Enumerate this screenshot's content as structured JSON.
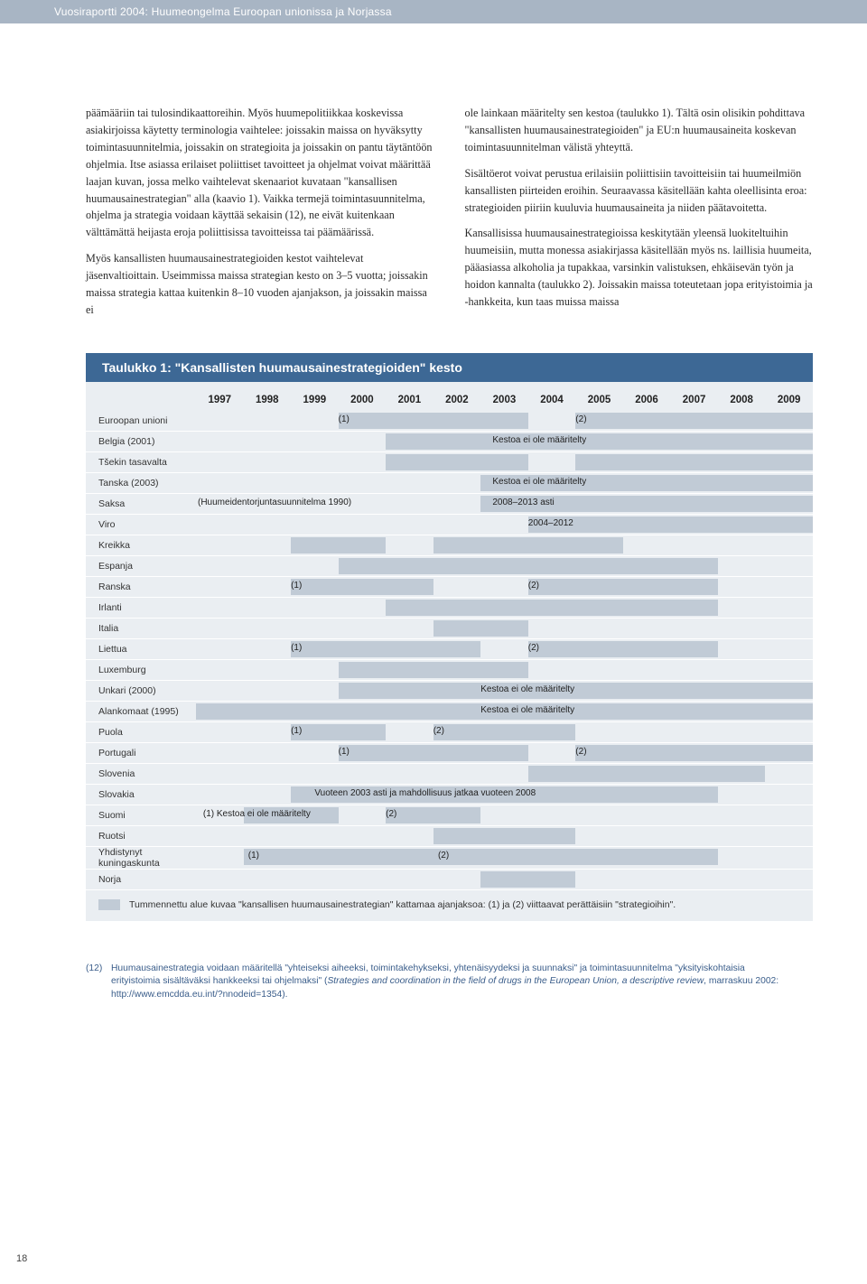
{
  "header": {
    "title": "Vuosiraportti 2004: Huumeongelma Euroopan unionissa ja Norjassa"
  },
  "body": {
    "left_p1": "päämääriin tai tulosindikaattoreihin. Myös huumepolitiikkaa koskevissa asiakirjoissa käytetty terminologia vaihtelee: joissakin maissa on hyväksytty toimintasuunnitelmia, joissakin on strategioita ja joissakin on pantu täytäntöön ohjelmia. Itse asiassa erilaiset poliittiset tavoitteet ja ohjelmat voivat määrittää laajan kuvan, jossa melko vaihtelevat skenaariot kuvataan \"kansallisen huumausainestrategian\" alla (kaavio 1). Vaikka termejä toimintasuunnitelma, ohjelma ja strategia voidaan käyttää sekaisin (12), ne eivät kuitenkaan välttämättä heijasta eroja poliittisissa tavoitteissa tai päämäärissä.",
    "left_p2": "Myös kansallisten huumausainestrategioiden kestot vaihtelevat jäsenvaltioittain. Useimmissa maissa strategian kesto on 3–5 vuotta; joissakin maissa strategia kattaa kuitenkin 8–10 vuoden ajanjakson, ja joissakin maissa ei",
    "right_p1": "ole lainkaan määritelty sen kestoa (taulukko 1). Tältä osin olisikin pohdittava \"kansallisten huumausainestrategioiden\" ja EU:n huumausaineita koskevan toimintasuunnitelman välistä yhteyttä.",
    "right_p2": "Sisältöerot voivat perustua erilaisiin poliittisiin tavoitteisiin tai huumeilmiön kansallisten piirteiden eroihin. Seuraavassa käsitellään kahta oleellisinta eroa: strategioiden piiriin kuuluvia huumausaineita ja niiden päätavoitetta.",
    "right_p3": "Kansallisissa huumausainestrategioissa keskitytään yleensä luokiteltuihin huumeisiin, mutta monessa asiakirjassa käsitellään myös ns. laillisia huumeita, pääasiassa alkoholia ja tupakkaa, varsinkin valistuksen, ehkäisevän työn ja hoidon kannalta (taulukko 2). Joissakin maissa toteutetaan jopa erityistoimia ja -hankkeita, kun taas muissa maissa"
  },
  "table": {
    "title": "Taulukko 1: \"Kansallisten huumausainestrategioiden\" kesto",
    "years": [
      "1997",
      "1998",
      "1999",
      "2000",
      "2001",
      "2002",
      "2003",
      "2004",
      "2005",
      "2006",
      "2007",
      "2008",
      "2009"
    ],
    "year_start": 1997,
    "year_span": 13,
    "bar_color": "#c1cbd6",
    "bg_color": "#eaeef2",
    "title_bg": "#3d6895",
    "rows": [
      {
        "label": "Euroopan unioni",
        "bars": [
          {
            "s": 2000,
            "e": 2004
          },
          {
            "s": 2005,
            "e": 2010
          }
        ],
        "texts": [
          {
            "at": 2000,
            "t": "(1)"
          },
          {
            "at": 2005,
            "t": "(2)"
          }
        ]
      },
      {
        "label": "Belgia (2001)",
        "bars": [
          {
            "s": 2001,
            "e": 2010
          }
        ],
        "texts": [
          {
            "at": 2003.25,
            "t": "Kestoa ei ole määritelty"
          }
        ]
      },
      {
        "label": "Tšekin tasavalta",
        "bars": [
          {
            "s": 2001,
            "e": 2004
          },
          {
            "s": 2005,
            "e": 2010
          }
        ]
      },
      {
        "label": "Tanska (2003)",
        "bars": [
          {
            "s": 2003,
            "e": 2010
          }
        ],
        "texts": [
          {
            "at": 2003.25,
            "t": "Kestoa ei ole määritelty"
          }
        ]
      },
      {
        "label": "Saksa",
        "label_note": "(Huumeidentorjuntasuunnitelma 1990)",
        "bars": [
          {
            "s": 2003,
            "e": 2010
          }
        ],
        "texts": [
          {
            "at": 2003.25,
            "t": "2008–2013 asti"
          }
        ]
      },
      {
        "label": "Viro",
        "bars": [
          {
            "s": 2004,
            "e": 2010
          }
        ],
        "texts": [
          {
            "at": 2004,
            "t": "2004–2012"
          }
        ]
      },
      {
        "label": "Kreikka",
        "bars": [
          {
            "s": 1999,
            "e": 2001
          },
          {
            "s": 2002,
            "e": 2006
          }
        ]
      },
      {
        "label": "Espanja",
        "bars": [
          {
            "s": 2000,
            "e": 2008
          }
        ]
      },
      {
        "label": "Ranska",
        "bars": [
          {
            "s": 1999,
            "e": 2002
          },
          {
            "s": 2004,
            "e": 2008
          }
        ],
        "texts": [
          {
            "at": 1999,
            "t": "(1)"
          },
          {
            "at": 2004,
            "t": "(2)"
          }
        ]
      },
      {
        "label": "Irlanti",
        "bars": [
          {
            "s": 2001,
            "e": 2008
          }
        ]
      },
      {
        "label": "Italia",
        "bars": [
          {
            "s": 2002,
            "e": 2004
          }
        ]
      },
      {
        "label": "Liettua",
        "bars": [
          {
            "s": 1999,
            "e": 2003
          },
          {
            "s": 2004,
            "e": 2008
          }
        ],
        "texts": [
          {
            "at": 1999,
            "t": "(1)"
          },
          {
            "at": 2004,
            "t": "(2)"
          }
        ]
      },
      {
        "label": "Luxemburg",
        "bars": [
          {
            "s": 2000,
            "e": 2004
          }
        ]
      },
      {
        "label": "Unkari (2000)",
        "bars": [
          {
            "s": 2000,
            "e": 2010
          }
        ],
        "texts": [
          {
            "at": 2003,
            "t": "Kestoa ei ole määritelty"
          }
        ]
      },
      {
        "label": "Alankomaat (1995)",
        "bars": [
          {
            "s": 1997,
            "e": 2010
          }
        ],
        "texts": [
          {
            "at": 2003,
            "t": "Kestoa ei ole määritelty"
          }
        ]
      },
      {
        "label": "Puola",
        "bars": [
          {
            "s": 1999,
            "e": 2001
          },
          {
            "s": 2002,
            "e": 2005
          }
        ],
        "texts": [
          {
            "at": 1999,
            "t": "(1)"
          },
          {
            "at": 2002,
            "t": "(2)"
          }
        ]
      },
      {
        "label": "Portugali",
        "bars": [
          {
            "s": 2000,
            "e": 2004
          },
          {
            "s": 2005,
            "e": 2010
          }
        ],
        "texts": [
          {
            "at": 2000,
            "t": "(1)"
          },
          {
            "at": 2005,
            "t": "(2)"
          }
        ]
      },
      {
        "label": "Slovenia",
        "bars": [
          {
            "s": 2004,
            "e": 2009
          }
        ]
      },
      {
        "label": "Slovakia",
        "bars": [
          {
            "s": 1999,
            "e": 2008
          }
        ],
        "texts": [
          {
            "at": 1999.5,
            "t": "Vuoteen 2003 asti ja mahdollisuus jatkaa vuoteen 2008"
          }
        ]
      },
      {
        "label": "Suomi",
        "bars": [
          {
            "s": 1998,
            "e": 2000
          },
          {
            "s": 2001,
            "e": 2003
          }
        ],
        "texts": [
          {
            "at": 1997.15,
            "t": "(1) Kestoa ei ole määritelty"
          },
          {
            "at": 2001,
            "t": "(2)"
          }
        ]
      },
      {
        "label": "Ruotsi",
        "bars": [
          {
            "s": 2002,
            "e": 2005
          }
        ]
      },
      {
        "label": "Yhdistynyt kuningaskunta",
        "bars": [
          {
            "s": 1998,
            "e": 2002
          },
          {
            "s": 2002,
            "e": 2008
          }
        ],
        "texts": [
          {
            "at": 1998.1,
            "t": "(1)"
          },
          {
            "at": 2002.1,
            "t": "(2)"
          }
        ]
      },
      {
        "label": "Norja",
        "bars": [
          {
            "s": 2003,
            "e": 2005
          }
        ]
      }
    ],
    "legend": "Tummennettu alue kuvaa \"kansallisen huumausainestrategian\" kattamaa ajanjaksoa: (1) ja (2) viittaavat perättäisiin \"strategioihin\"."
  },
  "footnote": {
    "marker": "(12)",
    "text_a": "Huumausainestrategia voidaan määritellä \"yhteiseksi aiheeksi, toimintakehykseksi, yhtenäisyydeksi ja suunnaksi\" ja toimintasuunnitelma \"yksityiskohtaisia erityistoimia sisältäväksi hankkeeksi tai ohjelmaksi\" (",
    "text_italic": "Strategies and coordination in the field of drugs in the European Union, a descriptive review",
    "text_b": ", marraskuu 2002: http://www.emcdda.eu.int/?nnodeid=1354)."
  },
  "page_number": "18"
}
